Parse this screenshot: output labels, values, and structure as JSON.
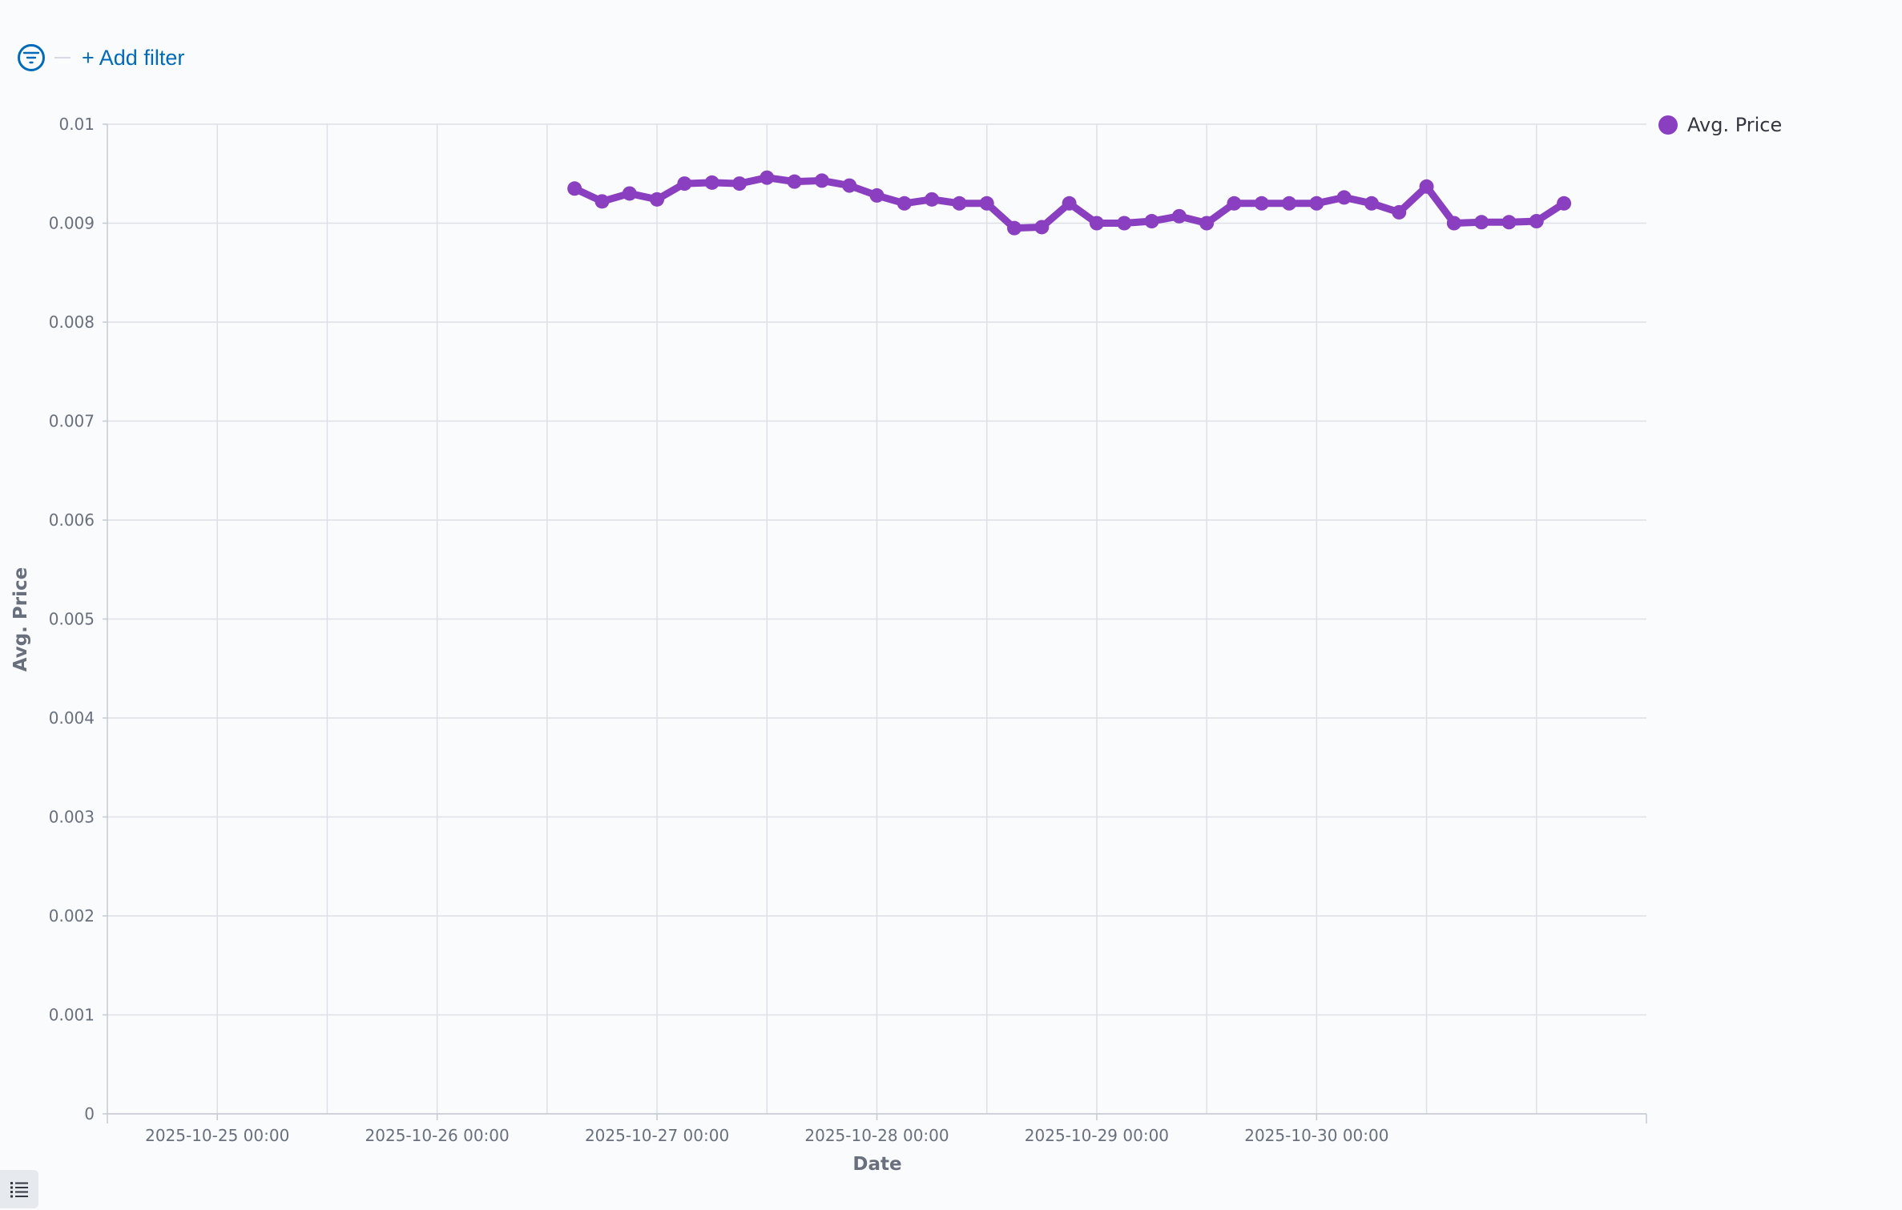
{
  "filter_bar": {
    "add_filter_label": "+ Add filter"
  },
  "colors": {
    "series": "#8a3fc0",
    "grid": "#dde0e6",
    "link": "#006bb8"
  },
  "icons": {
    "filter": "filter-funnel-icon",
    "legend_toggle": "list-icon"
  },
  "chart_data": {
    "type": "line",
    "xlabel": "Date",
    "ylabel": "Avg. Price",
    "ylim": [
      0,
      0.01
    ],
    "yticks": [
      "0",
      "0.001",
      "0.002",
      "0.003",
      "0.004",
      "0.005",
      "0.006",
      "0.007",
      "0.008",
      "0.009",
      "0.01"
    ],
    "xlim": [
      "2025-10-24 12:00",
      "2025-10-31 12:00"
    ],
    "xticks": [
      "2025-10-25 00:00",
      "2025-10-26 00:00",
      "2025-10-27 00:00",
      "2025-10-28 00:00",
      "2025-10-29 00:00",
      "2025-10-30 00:00"
    ],
    "grid": true,
    "legend_position": "top-right",
    "series": [
      {
        "name": "Avg. Price",
        "x": [
          "2025-10-26 15:00",
          "2025-10-26 18:00",
          "2025-10-26 21:00",
          "2025-10-27 00:00",
          "2025-10-27 03:00",
          "2025-10-27 06:00",
          "2025-10-27 09:00",
          "2025-10-27 12:00",
          "2025-10-27 15:00",
          "2025-10-27 18:00",
          "2025-10-27 21:00",
          "2025-10-28 00:00",
          "2025-10-28 03:00",
          "2025-10-28 06:00",
          "2025-10-28 09:00",
          "2025-10-28 12:00",
          "2025-10-28 15:00",
          "2025-10-28 18:00",
          "2025-10-28 21:00",
          "2025-10-29 00:00",
          "2025-10-29 03:00",
          "2025-10-29 06:00",
          "2025-10-29 09:00",
          "2025-10-29 12:00",
          "2025-10-29 15:00",
          "2025-10-29 18:00",
          "2025-10-29 21:00",
          "2025-10-30 00:00",
          "2025-10-30 03:00",
          "2025-10-30 06:00",
          "2025-10-30 09:00",
          "2025-10-30 12:00",
          "2025-10-30 15:00",
          "2025-10-30 18:00",
          "2025-10-30 21:00",
          "2025-10-31 00:00",
          "2025-10-31 03:00"
        ],
        "values": [
          0.00935,
          0.00922,
          0.0093,
          0.00924,
          0.0094,
          0.00941,
          0.0094,
          0.00946,
          0.00942,
          0.00943,
          0.00938,
          0.00928,
          0.0092,
          0.00924,
          0.0092,
          0.0092,
          0.00895,
          0.00896,
          0.0092,
          0.009,
          0.009,
          0.00902,
          0.00907,
          0.009,
          0.0092,
          0.0092,
          0.0092,
          0.0092,
          0.00926,
          0.0092,
          0.00911,
          0.00937,
          0.009,
          0.00901,
          0.00901,
          0.00902,
          0.0092
        ]
      }
    ]
  }
}
